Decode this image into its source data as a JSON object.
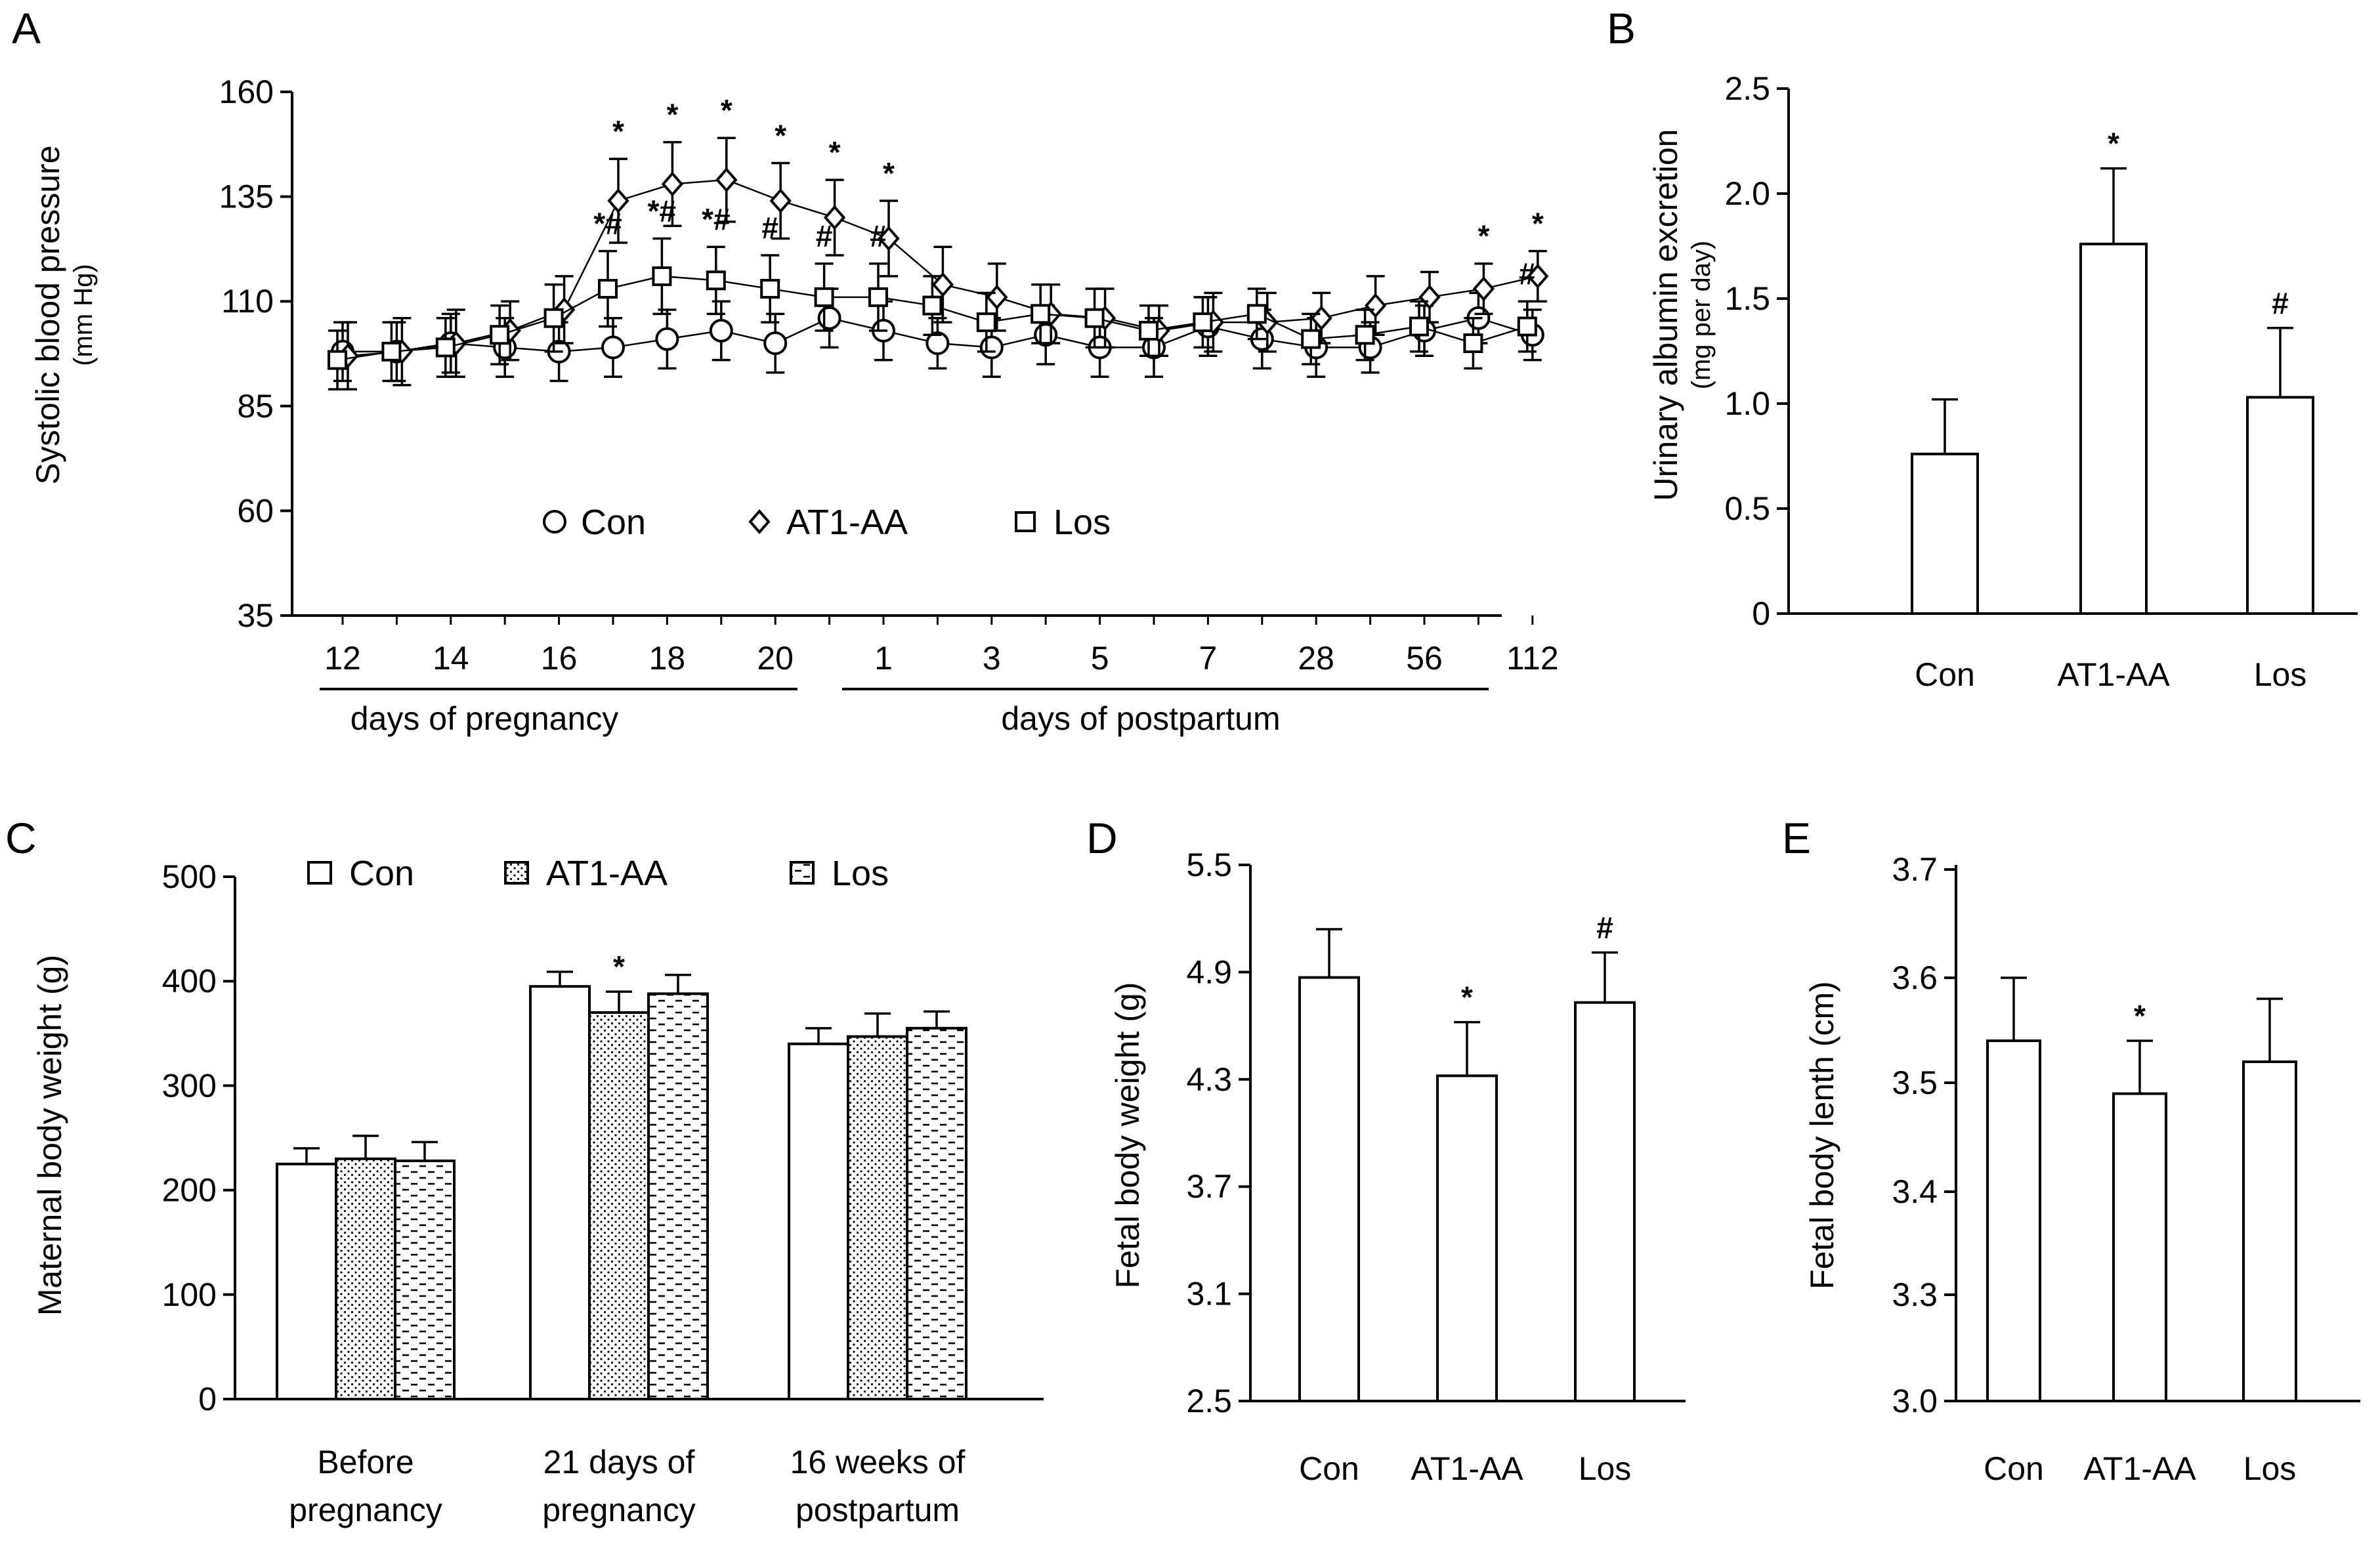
{
  "colors": {
    "ink": "#000000",
    "fill": "#ffffff",
    "sublabel": "#3a7bbf"
  },
  "chart_data": [
    {
      "panel": "A",
      "type": "line",
      "ylabel": "Systolic blood pressure",
      "ylabel_sub": "(mm Hg)",
      "ylim": [
        35,
        160
      ],
      "yticks": [
        "35",
        "60",
        "85",
        "110",
        "135",
        "160"
      ],
      "x": [
        "12",
        "13",
        "14",
        "15",
        "16",
        "17",
        "18",
        "19",
        "20",
        "21",
        "1",
        "2",
        "3",
        "4",
        "5",
        "6",
        "7",
        "14",
        "28",
        "42",
        "56",
        "84",
        "112"
      ],
      "xtick_labels": [
        "12",
        "14",
        "16",
        "18",
        "20",
        "1",
        "3",
        "5",
        "7",
        "28",
        "56",
        "112"
      ],
      "group_labels": [
        "days of pregnancy",
        "days of postpartum"
      ],
      "legend_position": "inside-bottom",
      "series": [
        {
          "name": "Con",
          "marker": "circle",
          "values": [
            98,
            98,
            100,
            99,
            98,
            99,
            101,
            103,
            100,
            106,
            103,
            100,
            99,
            102,
            99,
            99,
            104,
            101,
            99,
            99,
            103,
            106,
            102
          ],
          "errors": [
            7,
            7,
            7,
            7,
            7,
            7,
            7,
            7,
            7,
            7,
            7,
            6,
            7,
            7,
            7,
            7,
            7,
            7,
            7,
            6,
            6,
            6,
            6
          ]
        },
        {
          "name": "AT1-AA",
          "marker": "diamond",
          "values": [
            97,
            98,
            100,
            103,
            108,
            134,
            138,
            139,
            134,
            130,
            125,
            114,
            111,
            107,
            106,
            103,
            105,
            105,
            106,
            109,
            111,
            113,
            116
          ],
          "errors": [
            8,
            8,
            8,
            7,
            8,
            10,
            10,
            10,
            9,
            9,
            9,
            9,
            8,
            7,
            7,
            6,
            7,
            7,
            6,
            7,
            6,
            6,
            6
          ]
        },
        {
          "name": "Los",
          "marker": "square",
          "values": [
            96,
            98,
            99,
            102,
            106,
            113,
            116,
            115,
            113,
            111,
            111,
            109,
            105,
            107,
            106,
            103,
            105,
            107,
            101,
            102,
            104,
            100,
            104
          ],
          "errors": [
            7,
            7,
            7,
            7,
            8,
            9,
            9,
            8,
            8,
            8,
            8,
            7,
            7,
            7,
            7,
            6,
            6,
            6,
            6,
            6,
            6,
            6,
            6
          ]
        }
      ],
      "annotations": [
        {
          "series": "AT1-AA",
          "x": "17",
          "text": "*"
        },
        {
          "series": "AT1-AA",
          "x": "18",
          "text": "*"
        },
        {
          "series": "AT1-AA",
          "x": "19",
          "text": "*"
        },
        {
          "series": "AT1-AA",
          "x": "20",
          "text": "*"
        },
        {
          "series": "AT1-AA",
          "x": "21",
          "text": "*"
        },
        {
          "series": "AT1-AA",
          "x": "1",
          "text": "*"
        },
        {
          "series": "AT1-AA",
          "x": "84",
          "text": "*"
        },
        {
          "series": "AT1-AA",
          "x": "112",
          "text": "*"
        },
        {
          "series": "Los",
          "x": "17",
          "text": "*#"
        },
        {
          "series": "Los",
          "x": "18",
          "text": "*#"
        },
        {
          "series": "Los",
          "x": "19",
          "text": "*#"
        },
        {
          "series": "Los",
          "x": "20",
          "text": "#"
        },
        {
          "series": "Los",
          "x": "21",
          "text": "#"
        },
        {
          "series": "Los",
          "x": "1",
          "text": "#"
        },
        {
          "series": "Los",
          "x": "112",
          "text": "#"
        }
      ]
    },
    {
      "panel": "B",
      "type": "bar",
      "categories": [
        "Con",
        "AT1-AA",
        "Los"
      ],
      "values": [
        0.76,
        1.76,
        1.03
      ],
      "errors": [
        0.26,
        0.36,
        0.33
      ],
      "ylabel": "Urinary albumin excretion",
      "ylabel_sub": "(mg per day)",
      "ylim": [
        0,
        2.5
      ],
      "yticks": [
        "0",
        "0.5",
        "1.0",
        "1.5",
        "2.0",
        "2.5"
      ],
      "annotations": [
        "",
        "*",
        "#"
      ]
    },
    {
      "panel": "C",
      "type": "bar",
      "categories": [
        "Before pregnancy",
        "21 days of pregnancy",
        "16 weeks of postpartum"
      ],
      "category_lines": [
        [
          "Before",
          "pregnancy"
        ],
        [
          "21 days of",
          "pregnancy"
        ],
        [
          "16 weeks of",
          "postpartum"
        ]
      ],
      "series": [
        {
          "name": "Con",
          "pattern": "solid",
          "values": [
            225,
            395,
            340
          ],
          "errors": [
            15,
            14,
            15
          ]
        },
        {
          "name": "AT1-AA",
          "pattern": "dots",
          "values": [
            230,
            370,
            347
          ],
          "errors": [
            22,
            20,
            22
          ]
        },
        {
          "name": "Los",
          "pattern": "dashes",
          "values": [
            228,
            388,
            355
          ],
          "errors": [
            18,
            18,
            16
          ]
        }
      ],
      "ylabel": "Maternal  body weight (g)",
      "ylim": [
        0,
        500
      ],
      "yticks": [
        "0",
        "100",
        "200",
        "300",
        "400",
        "500"
      ],
      "legend_position": "top",
      "annotations": [
        {
          "category": "21 days of pregnancy",
          "series": "AT1-AA",
          "text": "*"
        }
      ]
    },
    {
      "panel": "D",
      "type": "bar",
      "categories": [
        "Con",
        "AT1-AA",
        "Los"
      ],
      "values": [
        4.87,
        4.32,
        4.73
      ],
      "errors": [
        0.27,
        0.3,
        0.28
      ],
      "ylabel": "Fetal body weight (g)",
      "ylim": [
        2.5,
        5.5
      ],
      "yticks": [
        "2.5",
        "3.1",
        "3.7",
        "4.3",
        "4.9",
        "5.5"
      ],
      "annotations": [
        "",
        "*",
        "#"
      ]
    },
    {
      "panel": "E",
      "type": "bar",
      "categories": [
        "Con",
        "AT1-AA",
        "Los"
      ],
      "values": [
        3.54,
        3.49,
        3.52
      ],
      "errors": [
        0.06,
        0.05,
        0.06
      ],
      "ylabel": "Fetal body lenth (cm)",
      "ylim": [
        3.0,
        3.7
      ],
      "yticks": [
        "3.0",
        "3.3",
        "3.4",
        "3.5",
        "3.6",
        "3.7"
      ],
      "annotations": [
        "",
        "*",
        ""
      ]
    }
  ]
}
